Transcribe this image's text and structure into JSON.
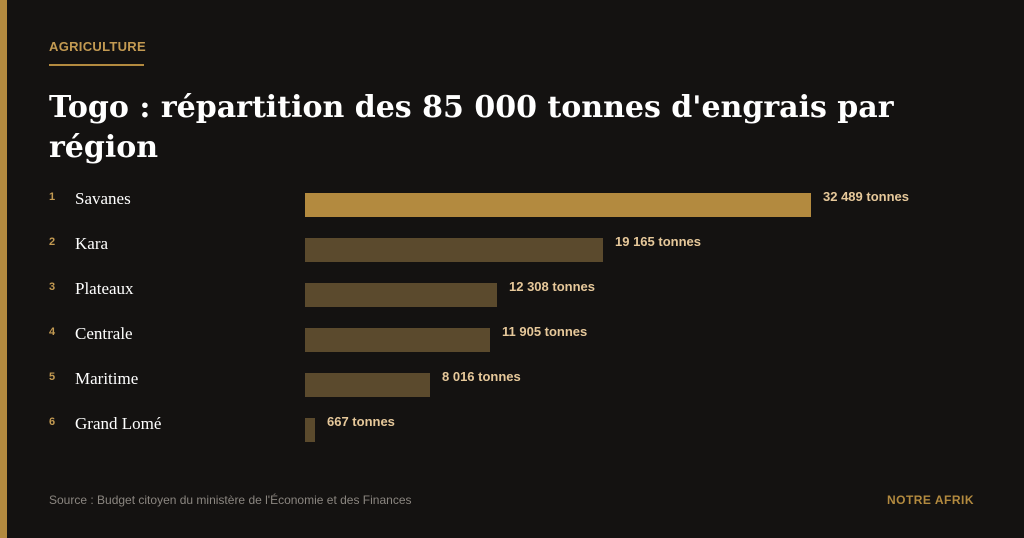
{
  "header": {
    "category": "AGRICULTURE",
    "title": "Togo : répartition des 85 000 tonnes d'engrais par région"
  },
  "chart_data": {
    "type": "bar",
    "orientation": "horizontal",
    "title": "Togo : répartition des 85 000 tonnes d'engrais par région",
    "unit": "tonnes",
    "categories": [
      "Savanes",
      "Kara",
      "Plateaux",
      "Centrale",
      "Maritime",
      "Grand Lomé"
    ],
    "ranks": [
      "1",
      "2",
      "3",
      "4",
      "5",
      "6"
    ],
    "values": [
      32489,
      19165,
      12308,
      11905,
      8016,
      667
    ],
    "value_labels": [
      "32 489 tonnes",
      "19 165 tonnes",
      "12 308 tonnes",
      "11 905 tonnes",
      "8 016 tonnes",
      "667 tonnes"
    ],
    "xlim": [
      0,
      32489
    ],
    "grid": false,
    "colors": {
      "highlight": "#b38a3f",
      "default": "#5b4a2d"
    }
  },
  "footer": {
    "source": "Source : Budget citoyen du ministère de l'Économie et des Finances",
    "brand": "NOTRE AFRIK"
  }
}
